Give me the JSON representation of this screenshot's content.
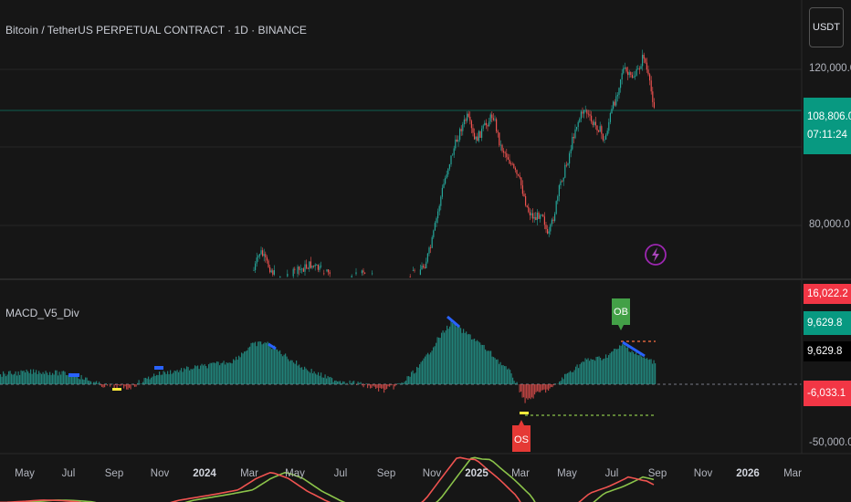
{
  "header": {
    "symbol_title": "Bitcoin / TetherUS PERPETUAL CONTRACT · 1D · BINANCE",
    "currency_button": "USDT"
  },
  "price_scale": {
    "labels": [
      "120,000.0",
      "80,000.0"
    ],
    "last_price": "108,806.0",
    "countdown": "07:11:24"
  },
  "indicator": {
    "name": "MACD_V5_Div",
    "scale_labels": {
      "top": "16,022.2",
      "macd": "9,629.8",
      "signal": "9,629.8",
      "hist": "-6,033.1",
      "bottom": "-50,000.0"
    },
    "ob_label": "OB",
    "os_label": "OS"
  },
  "time_axis": {
    "ticks": [
      {
        "label": "May",
        "bold": false
      },
      {
        "label": "Jul",
        "bold": false
      },
      {
        "label": "Sep",
        "bold": false
      },
      {
        "label": "Nov",
        "bold": false
      },
      {
        "label": "2024",
        "bold": true
      },
      {
        "label": "Mar",
        "bold": false
      },
      {
        "label": "May",
        "bold": false
      },
      {
        "label": "Jul",
        "bold": false
      },
      {
        "label": "Sep",
        "bold": false
      },
      {
        "label": "Nov",
        "bold": false
      },
      {
        "label": "2025",
        "bold": true
      },
      {
        "label": "Mar",
        "bold": false
      },
      {
        "label": "May",
        "bold": false
      },
      {
        "label": "Jul",
        "bold": false
      },
      {
        "label": "Sep",
        "bold": false
      },
      {
        "label": "Nov",
        "bold": false
      },
      {
        "label": "2026",
        "bold": true
      },
      {
        "label": "Mar",
        "bold": false
      }
    ]
  },
  "colors": {
    "up": "#26a69a",
    "down": "#ef5350",
    "last_price_bg": "#089981",
    "hist_tag_bg": "#f23645",
    "macd_line": "#ef5350",
    "signal_line": "#8bc34a",
    "divergence": "#2962ff"
  },
  "icons": {
    "alert": "lightning-icon"
  }
}
